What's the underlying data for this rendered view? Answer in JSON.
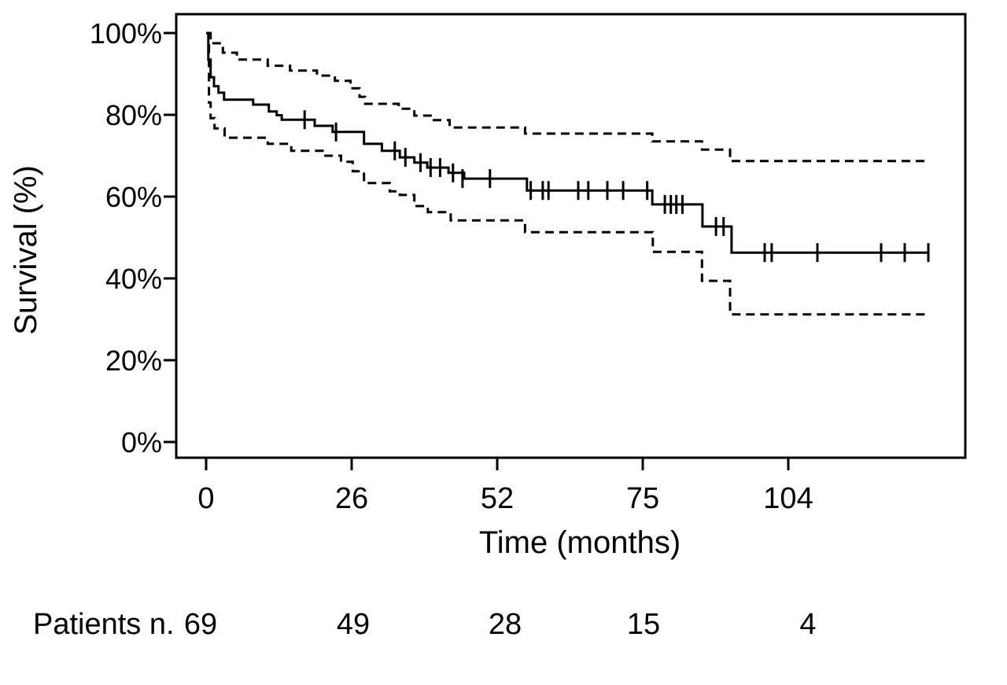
{
  "figure": {
    "background": "#ffffff",
    "line_color": "#000000"
  },
  "chart_data": {
    "type": "line",
    "subtype": "kaplan-meier-step",
    "title": "",
    "xlabel": "Time (months)",
    "ylabel": "Survival (%)",
    "x_tick_values": [
      0,
      26,
      52,
      75,
      104
    ],
    "y_tick_values": [
      0,
      20,
      40,
      60,
      80,
      100
    ],
    "y_tick_suffix": "%",
    "x_end_months": 132,
    "ylim": [
      0,
      100
    ],
    "grid": false,
    "legend": "none",
    "series": [
      {
        "name": "survival",
        "style": "solid",
        "points": [
          [
            0,
            100
          ],
          [
            0.4,
            93.5
          ],
          [
            0.8,
            89.2
          ],
          [
            1.4,
            87
          ],
          [
            2.2,
            85.4
          ],
          [
            3.2,
            83.7
          ],
          [
            8.4,
            82.5
          ],
          [
            11.2,
            80.8
          ],
          [
            12.6,
            79.9
          ],
          [
            13.5,
            78.8
          ],
          [
            19.4,
            77.3
          ],
          [
            22.6,
            75.8
          ],
          [
            28.2,
            72.9
          ],
          [
            31.4,
            71.2
          ],
          [
            34.6,
            69.6
          ],
          [
            37.2,
            68.3
          ],
          [
            39.5,
            67.1
          ],
          [
            43.3,
            65.8
          ],
          [
            46.1,
            64.4
          ],
          [
            56.7,
            61.5
          ],
          [
            76.9,
            58.1
          ],
          [
            86.9,
            52.7
          ],
          [
            92.7,
            46.3
          ]
        ]
      },
      {
        "name": "upper_95_ci",
        "style": "dashed",
        "points": [
          [
            0.4,
            100
          ],
          [
            0.8,
            97.5
          ],
          [
            3,
            95.2
          ],
          [
            5.5,
            93.5
          ],
          [
            11,
            92
          ],
          [
            15,
            90.8
          ],
          [
            19.8,
            89.6
          ],
          [
            23,
            88.3
          ],
          [
            25.8,
            86.5
          ],
          [
            27.4,
            84.4
          ],
          [
            28.4,
            82.7
          ],
          [
            34.4,
            81.5
          ],
          [
            37.2,
            79.8
          ],
          [
            40.3,
            78.7
          ],
          [
            43.5,
            76.9
          ],
          [
            56.4,
            75.4
          ],
          [
            76.9,
            73.5
          ],
          [
            86.8,
            71.5
          ],
          [
            92.4,
            68.7
          ]
        ]
      },
      {
        "name": "lower_95_ci",
        "style": "dashed",
        "points": [
          [
            0.35,
            97
          ],
          [
            0.5,
            83
          ],
          [
            0.8,
            79.2
          ],
          [
            1.5,
            76.7
          ],
          [
            3.3,
            74.4
          ],
          [
            11,
            72.9
          ],
          [
            15.2,
            71.2
          ],
          [
            20.8,
            70
          ],
          [
            24.1,
            68.5
          ],
          [
            26.2,
            66.2
          ],
          [
            28.2,
            63.3
          ],
          [
            32.8,
            61.3
          ],
          [
            34.6,
            60.4
          ],
          [
            37.2,
            57.7
          ],
          [
            39.6,
            56.2
          ],
          [
            43.7,
            54.2
          ],
          [
            56.4,
            51.3
          ],
          [
            77,
            46.5
          ],
          [
            86.8,
            39.4
          ],
          [
            92.4,
            31.2
          ]
        ]
      }
    ],
    "censor_marks": [
      [
        17.6,
        78.8
      ],
      [
        23.2,
        75.8
      ],
      [
        33.7,
        71.2
      ],
      [
        35.6,
        69.6
      ],
      [
        38.3,
        68.3
      ],
      [
        40.1,
        67.1
      ],
      [
        41.8,
        67.1
      ],
      [
        44.1,
        65.8
      ],
      [
        45.8,
        64.4
      ],
      [
        50.7,
        64.4
      ],
      [
        57.3,
        61.5
      ],
      [
        59.2,
        61.5
      ],
      [
        60.1,
        61.5
      ],
      [
        64.8,
        61.5
      ],
      [
        66.4,
        61.5
      ],
      [
        69.4,
        61.5
      ],
      [
        71.9,
        61.5
      ],
      [
        75.9,
        61.5
      ],
      [
        79.4,
        58.1
      ],
      [
        80.6,
        58.1
      ],
      [
        81.7,
        58.1
      ],
      [
        82.9,
        58.1
      ],
      [
        89.6,
        52.7
      ],
      [
        91.1,
        52.7
      ],
      [
        99.3,
        46.3
      ],
      [
        100.7,
        46.3
      ],
      [
        109.8,
        46.3
      ],
      [
        122.5,
        46.3
      ],
      [
        127.2,
        46.3
      ],
      [
        131.9,
        46.3
      ]
    ],
    "at_risk": {
      "label": "Patients n.",
      "values": [
        69,
        49,
        28,
        15,
        4
      ]
    }
  }
}
